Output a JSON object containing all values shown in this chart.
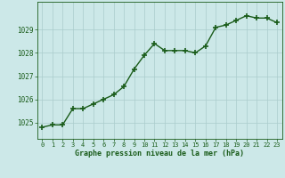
{
  "x": [
    0,
    1,
    2,
    3,
    4,
    5,
    6,
    7,
    8,
    9,
    10,
    11,
    12,
    13,
    14,
    15,
    16,
    17,
    18,
    19,
    20,
    21,
    22,
    23
  ],
  "y": [
    1024.8,
    1024.9,
    1024.9,
    1025.6,
    1025.6,
    1025.8,
    1026.0,
    1026.2,
    1026.55,
    1027.3,
    1027.9,
    1028.4,
    1028.1,
    1028.1,
    1028.1,
    1028.0,
    1028.3,
    1029.1,
    1029.2,
    1029.4,
    1029.6,
    1029.5,
    1029.5,
    1029.3
  ],
  "line_color": "#1a5c1a",
  "marker": "+",
  "marker_size": 4,
  "bg_color": "#cce8e8",
  "grid_color": "#aacccc",
  "ylim": [
    1024.3,
    1030.2
  ],
  "xlim": [
    -0.5,
    23.5
  ],
  "yticks": [
    1025,
    1026,
    1027,
    1028,
    1029
  ],
  "xticks": [
    0,
    1,
    2,
    3,
    4,
    5,
    6,
    7,
    8,
    9,
    10,
    11,
    12,
    13,
    14,
    15,
    16,
    17,
    18,
    19,
    20,
    21,
    22,
    23
  ],
  "xlabel": "Graphe pression niveau de la mer (hPa)",
  "xlabel_color": "#1a5c1a",
  "tick_color": "#1a5c1a",
  "line_width": 1.0,
  "marker_edge_width": 1.2
}
